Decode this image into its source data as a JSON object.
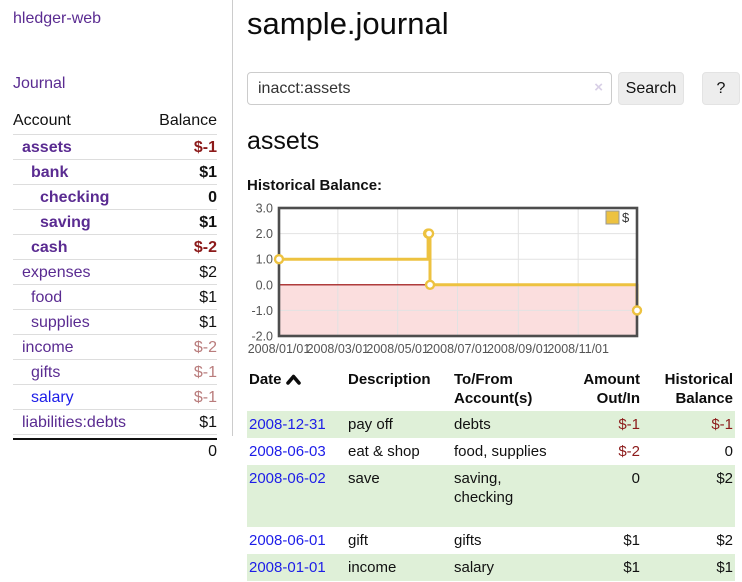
{
  "sidebar": {
    "app_title": "hledger-web",
    "nav": {
      "journal_label": "Journal"
    },
    "accounts_table": {
      "headers": {
        "account": "Account",
        "balance": "Balance"
      },
      "rows": [
        {
          "name": "assets",
          "balance": "$-1",
          "indent": 1,
          "bold": true,
          "balance_style": "neg-strong"
        },
        {
          "name": "bank",
          "balance": "$1",
          "indent": 2,
          "bold": true,
          "balance_style": "pos"
        },
        {
          "name": "checking",
          "balance": "0",
          "indent": 3,
          "bold": true,
          "balance_style": "pos"
        },
        {
          "name": "saving",
          "balance": "$1",
          "indent": 3,
          "bold": true,
          "balance_style": "pos"
        },
        {
          "name": "cash",
          "balance": "$-2",
          "indent": 2,
          "bold": true,
          "balance_style": "neg-strong"
        },
        {
          "name": "expenses",
          "balance": "$2",
          "indent": 1,
          "bold": false,
          "balance_style": "pos"
        },
        {
          "name": "food",
          "balance": "$1",
          "indent": 2,
          "bold": false,
          "balance_style": "pos"
        },
        {
          "name": "supplies",
          "balance": "$1",
          "indent": 2,
          "bold": false,
          "balance_style": "pos"
        },
        {
          "name": "income",
          "balance": "$-2",
          "indent": 1,
          "bold": false,
          "balance_style": "neg-soft"
        },
        {
          "name": "gifts",
          "balance": "$-1",
          "indent": 2,
          "bold": false,
          "balance_style": "neg-soft"
        },
        {
          "name": "salary",
          "balance": "$-1",
          "indent": 2,
          "bold": false,
          "balance_style": "neg-soft",
          "link": "blue"
        },
        {
          "name": "liabilities:debts",
          "balance": "$1",
          "indent": 1,
          "bold": false,
          "balance_style": "pos"
        }
      ],
      "total": "0"
    }
  },
  "main": {
    "title": "sample.journal",
    "search": {
      "value": "inacct:assets",
      "clear_icon": "×",
      "button_label": "Search",
      "help_label": "?"
    },
    "account_heading": "assets",
    "chart_label": "Historical Balance:",
    "register_table": {
      "headers": [
        {
          "label": "Date",
          "align": "left",
          "sortable": true,
          "sort_indicator": "ascending"
        },
        {
          "label": "Description",
          "align": "left"
        },
        {
          "label": "To/From Account(s)",
          "align": "left"
        },
        {
          "label": "Amount Out/In",
          "align": "right"
        },
        {
          "label": "Historical Balance",
          "align": "right"
        }
      ],
      "rows": [
        {
          "date": "2008-12-31",
          "description": "pay off",
          "accounts": "debts",
          "amount": "$-1",
          "balance": "$-1",
          "shaded": true,
          "tall": false
        },
        {
          "date": "2008-06-03",
          "description": "eat & shop",
          "accounts": "food, supplies",
          "amount": "$-2",
          "balance": "0",
          "shaded": false,
          "tall": false
        },
        {
          "date": "2008-06-02",
          "description": "save",
          "accounts": "saving,\nchecking",
          "amount": "0",
          "balance": "$2",
          "shaded": true,
          "tall": true
        },
        {
          "date": "2008-06-01",
          "description": "gift",
          "accounts": "gifts",
          "amount": "$1",
          "balance": "$2",
          "shaded": false,
          "tall": false
        },
        {
          "date": "2008-01-01",
          "description": "income",
          "accounts": "salary",
          "amount": "$1",
          "balance": "$1",
          "shaded": true,
          "tall": false
        }
      ]
    }
  },
  "chart_data": {
    "type": "line",
    "step": true,
    "title": "Historical Balance:",
    "xlabel": "",
    "ylabel": "",
    "series": [
      {
        "name": "$",
        "color": "#edc240",
        "points": [
          [
            "2008-01-01",
            1
          ],
          [
            "2008-06-01",
            2
          ],
          [
            "2008-06-02",
            2
          ],
          [
            "2008-06-03",
            0
          ],
          [
            "2008-12-31",
            -1
          ]
        ]
      }
    ],
    "x_range": [
      "2008-01-01",
      "2008-12-31"
    ],
    "x_ticks": [
      "2008/01/01",
      "2008/03/01",
      "2008/05/01",
      "2008/07/01",
      "2008/09/01",
      "2008/11/01"
    ],
    "y_ticks": [
      "3.0",
      "2.0",
      "1.0",
      "0.0",
      "-1.0",
      "-2.0"
    ],
    "ylim": [
      -2,
      3
    ],
    "grid": true,
    "grid_color": "#e2e2e2",
    "border_color": "#4d4d4d",
    "zero_line_color": "#990000",
    "negative_region_color": "#fbdede",
    "tick_text_color": "#545454",
    "legend": {
      "label": "$",
      "position": "top-right"
    }
  }
}
